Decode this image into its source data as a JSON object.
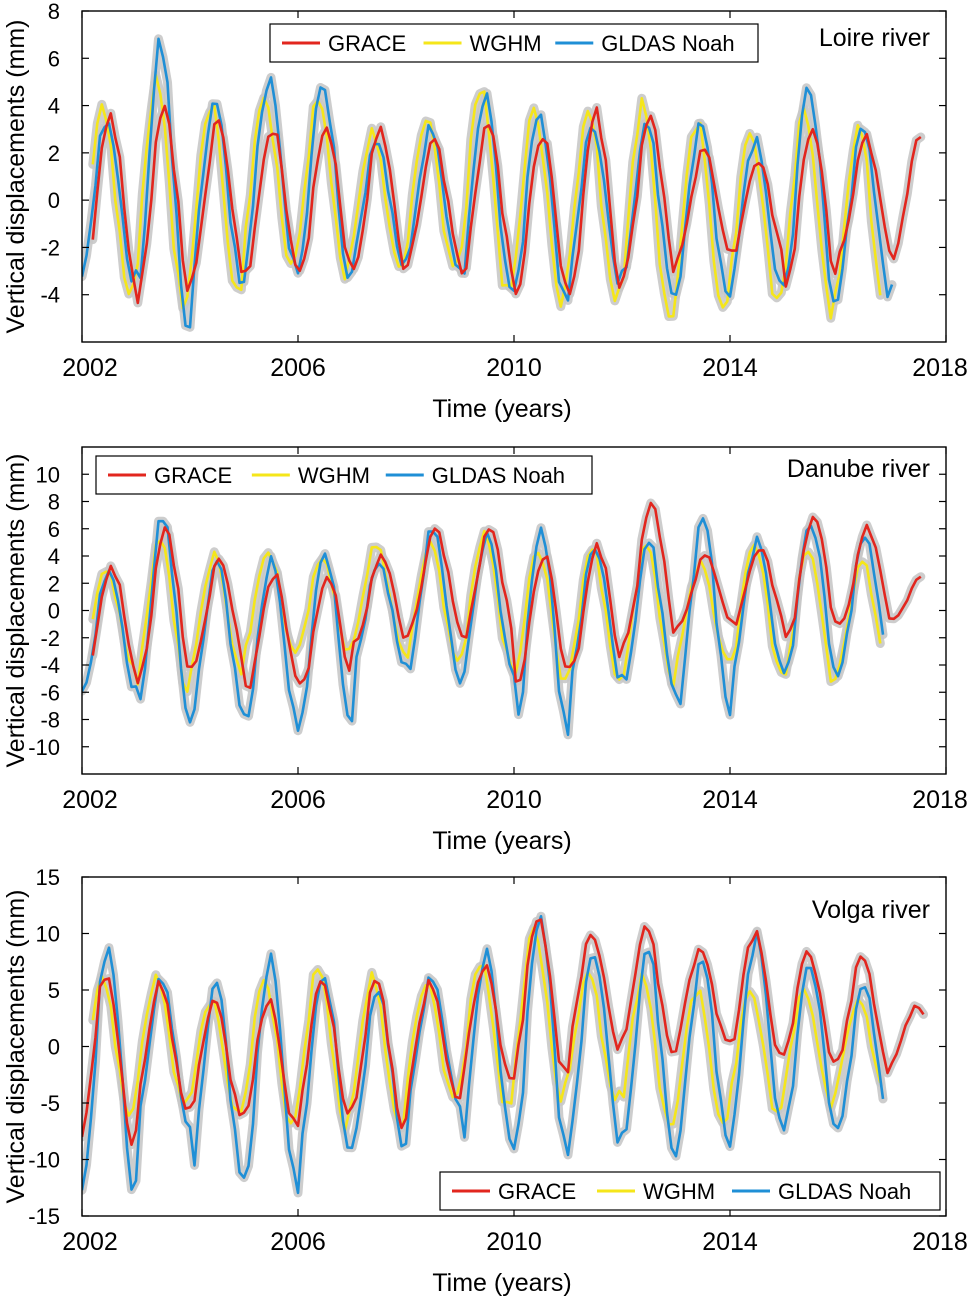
{
  "chart_data": [
    {
      "type": "line",
      "river_label": "Loire river",
      "xlabel": "Time (years)",
      "ylabel": "Vertical displacements (mm)",
      "xlim": [
        2002,
        2018
      ],
      "ylim": [
        -6,
        8
      ],
      "xticks": [
        2002,
        2006,
        2010,
        2014,
        2018
      ],
      "yticks": [
        -4,
        -2,
        0,
        2,
        4,
        6,
        8
      ],
      "legend": {
        "placement": "top-center",
        "entries": [
          "GRACE",
          "WGHM",
          "GLDAS Noah"
        ]
      },
      "series": [
        {
          "name": "GRACE",
          "color": "#e2261e",
          "x_start": 2002.2,
          "x_end": 2017.6,
          "means": [
            0,
            -0.1,
            0,
            0,
            0,
            0,
            0,
            0,
            -0.6,
            -0.2,
            0.2,
            -0.1,
            -0.3,
            -0.3,
            0.2,
            0.2
          ],
          "amps": [
            3.6,
            4.0,
            3.2,
            3.1,
            3.1,
            3.0,
            2.5,
            3.2,
            3.5,
            3.9,
            3.3,
            2.2,
            2.0,
            3.4,
            2.4,
            2.5
          ],
          "phase": 0.52
        },
        {
          "name": "WGHM",
          "color": "#f5e61a",
          "x_start": 2002.2,
          "x_end": 2016.8,
          "means": [
            0,
            0.3,
            0,
            0.8,
            0.6,
            0,
            0.3,
            0.4,
            -0.2,
            -0.2,
            -0.5,
            -0.7,
            -0.7,
            -0.4,
            -0.9
          ],
          "amps": [
            3.9,
            4.7,
            4.0,
            3.6,
            3.7,
            2.8,
            3.1,
            4.4,
            4.1,
            3.9,
            4.5,
            4.0,
            3.6,
            4.2,
            3.9
          ],
          "phase": 0.38
        },
        {
          "name": "GLDAS Noah",
          "color": "#1f8fd6",
          "x_start": 2002.0,
          "x_end": 2017.0,
          "means": [
            0,
            0.6,
            0.3,
            1.0,
            0.8,
            -0.1,
            0.1,
            0.2,
            -0.3,
            -0.1,
            -0.4,
            -0.4,
            -0.6,
            0.2,
            -0.4
          ],
          "amps": [
            3.4,
            6.0,
            3.8,
            4.0,
            4.2,
            2.6,
            2.9,
            4.1,
            4.0,
            3.3,
            3.6,
            3.6,
            3.1,
            4.7,
            3.5
          ],
          "phase": 0.46
        }
      ]
    },
    {
      "type": "line",
      "river_label": "Danube river",
      "xlabel": "Time (years)",
      "ylabel": "Vertical displacements (mm)",
      "xlim": [
        2002,
        2018
      ],
      "ylim": [
        -12,
        12
      ],
      "xticks": [
        2002,
        2006,
        2010,
        2014,
        2018
      ],
      "yticks": [
        -10,
        -8,
        -6,
        -4,
        -2,
        0,
        2,
        4,
        6,
        8,
        10
      ],
      "legend": {
        "placement": "top-left",
        "entries": [
          "GRACE",
          "WGHM",
          "GLDAS Noah"
        ]
      },
      "series": [
        {
          "name": "GRACE",
          "color": "#e2261e",
          "x_start": 2002.2,
          "x_end": 2017.6,
          "means": [
            -0.8,
            0.5,
            -0.2,
            -1.5,
            -1.5,
            0.8,
            2.2,
            2.0,
            -0.6,
            0.2,
            2.8,
            1.5,
            1.8,
            2.5,
            2.5,
            1.0
          ],
          "amps": [
            4.0,
            5.5,
            3.8,
            4.2,
            4.0,
            3.2,
            3.7,
            4.0,
            4.8,
            4.5,
            5.0,
            2.5,
            2.8,
            4.5,
            3.5,
            1.5
          ],
          "phase": 0.55
        },
        {
          "name": "WGHM",
          "color": "#f5e61a",
          "x_start": 2002.2,
          "x_end": 2016.8,
          "means": [
            -0.5,
            -0.3,
            -0.3,
            0.6,
            0.4,
            1.0,
            0.6,
            0.8,
            -0.4,
            -0.3,
            -0.2,
            -0.1,
            0.2,
            -0.4,
            -0.5
          ],
          "amps": [
            3.5,
            5.5,
            4.2,
            3.8,
            3.5,
            3.8,
            4.2,
            4.8,
            5.0,
            4.8,
            5.0,
            3.5,
            4.8,
            5.0,
            4.0
          ],
          "phase": 0.45
        },
        {
          "name": "GLDAS Noah",
          "color": "#1f8fd6",
          "x_start": 2002.0,
          "x_end": 2016.9,
          "means": [
            -1.5,
            -0.5,
            -2.0,
            -2.5,
            -2.0,
            -0.3,
            0.5,
            0.3,
            -1.5,
            -0.2,
            -0.5,
            -0.3,
            0.2,
            0.8,
            0.5
          ],
          "amps": [
            4.5,
            7.5,
            5.5,
            6.0,
            6.5,
            3.8,
            5.5,
            5.0,
            7.5,
            5.0,
            5.5,
            7.0,
            4.8,
            5.8,
            5.0
          ],
          "phase": 0.5
        }
      ]
    },
    {
      "type": "line",
      "river_label": "Volga river",
      "xlabel": "Time (years)",
      "ylabel": "Vertical displacements (mm)",
      "xlim": [
        2002,
        2018
      ],
      "ylim": [
        -15,
        15
      ],
      "xticks": [
        2002,
        2006,
        2010,
        2014,
        2018
      ],
      "yticks": [
        -15,
        -10,
        -5,
        0,
        5,
        10,
        15
      ],
      "legend": {
        "placement": "bottom-right",
        "entries": [
          "GRACE",
          "WGHM",
          "GLDAS Noah"
        ]
      },
      "series": [
        {
          "name": "GRACE",
          "color": "#e2261e",
          "x_start": 2002.0,
          "x_end": 2017.6,
          "means": [
            -1,
            0,
            -1,
            -1.5,
            0,
            -0.5,
            0.5,
            2,
            4.5,
            5,
            5,
            4.5,
            4.5,
            3.5,
            3,
            1
          ],
          "amps": [
            7.5,
            5.5,
            5.0,
            5.5,
            6.0,
            6.5,
            5.0,
            5.0,
            7.0,
            5.0,
            5.5,
            4.0,
            5.5,
            5.0,
            5.0,
            2.5
          ],
          "phase": 0.45
        },
        {
          "name": "WGHM",
          "color": "#f5e61a",
          "x_start": 2002.2,
          "x_end": 2016.8,
          "means": [
            0,
            0.5,
            -1,
            -0.5,
            0,
            -0.5,
            0.5,
            1,
            3,
            1,
            -0.5,
            -1,
            -0.5,
            0,
            0
          ],
          "amps": [
            6.0,
            5.5,
            5.0,
            6.5,
            7.0,
            6.5,
            5.0,
            6.5,
            7.5,
            5.5,
            6.5,
            6.0,
            5.5,
            5.0,
            4.0
          ],
          "phase": 0.38
        },
        {
          "name": "GLDAS Noah",
          "color": "#1f8fd6",
          "x_start": 2002.0,
          "x_end": 2016.9,
          "means": [
            -2,
            -0.5,
            -3,
            -2.5,
            -1.5,
            -2,
            0.5,
            -0.5,
            1,
            0,
            -0.5,
            -0.5,
            1,
            0,
            -1
          ],
          "amps": [
            11.0,
            6.5,
            8.5,
            10.0,
            8.0,
            7.0,
            5.5,
            8.5,
            10.5,
            8.5,
            9.0,
            8.0,
            8.5,
            7.5,
            6.5
          ],
          "phase": 0.48
        }
      ]
    }
  ]
}
